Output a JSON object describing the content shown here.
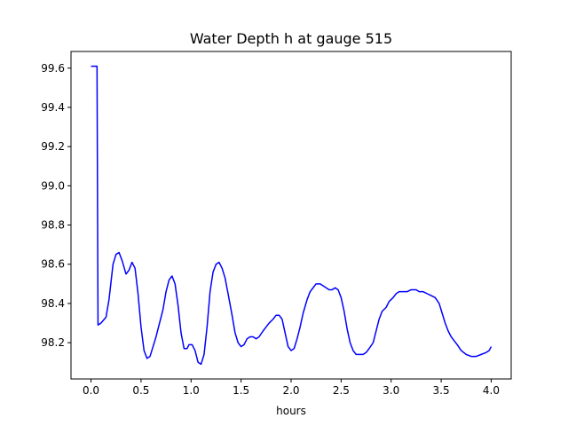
{
  "chart_data": {
    "type": "line",
    "title": "Water Depth h at gauge 515",
    "xlabel": "hours",
    "ylabel": "",
    "xlim": [
      -0.2,
      4.2
    ],
    "ylim": [
      98.015,
      99.685
    ],
    "xticks": [
      0.0,
      0.5,
      1.0,
      1.5,
      2.0,
      2.5,
      3.0,
      3.5,
      4.0
    ],
    "xtick_labels": [
      "0.0",
      "0.5",
      "1.0",
      "1.5",
      "2.0",
      "2.5",
      "3.0",
      "3.5",
      "4.0"
    ],
    "yticks": [
      98.2,
      98.4,
      98.6,
      98.8,
      99.0,
      99.2,
      99.4,
      99.6
    ],
    "ytick_labels": [
      "98.2",
      "98.4",
      "98.6",
      "98.8",
      "99.0",
      "99.2",
      "99.4",
      "99.6"
    ],
    "grid": false,
    "legend": false,
    "series": [
      {
        "color": "#0000ff",
        "x": [
          0.0,
          0.06,
          0.07,
          0.1,
          0.15,
          0.18,
          0.22,
          0.25,
          0.28,
          0.31,
          0.35,
          0.38,
          0.41,
          0.44,
          0.47,
          0.5,
          0.53,
          0.56,
          0.59,
          0.62,
          0.65,
          0.68,
          0.72,
          0.75,
          0.78,
          0.81,
          0.84,
          0.87,
          0.9,
          0.93,
          0.96,
          0.98,
          1.01,
          1.04,
          1.07,
          1.1,
          1.13,
          1.16,
          1.19,
          1.22,
          1.25,
          1.28,
          1.31,
          1.34,
          1.37,
          1.41,
          1.44,
          1.47,
          1.5,
          1.53,
          1.56,
          1.59,
          1.62,
          1.65,
          1.68,
          1.72,
          1.75,
          1.78,
          1.82,
          1.85,
          1.88,
          1.91,
          1.94,
          1.97,
          2.0,
          2.03,
          2.06,
          2.09,
          2.12,
          2.16,
          2.19,
          2.22,
          2.25,
          2.29,
          2.32,
          2.35,
          2.38,
          2.41,
          2.44,
          2.47,
          2.5,
          2.53,
          2.56,
          2.59,
          2.62,
          2.65,
          2.68,
          2.72,
          2.75,
          2.78,
          2.82,
          2.85,
          2.88,
          2.91,
          2.95,
          2.98,
          3.02,
          3.05,
          3.08,
          3.12,
          3.16,
          3.2,
          3.25,
          3.28,
          3.32,
          3.36,
          3.4,
          3.44,
          3.48,
          3.51,
          3.54,
          3.57,
          3.6,
          3.63,
          3.66,
          3.7,
          3.75,
          3.8,
          3.85,
          3.9,
          3.95,
          3.98,
          4.0
        ],
        "y": [
          99.61,
          99.61,
          98.29,
          98.3,
          98.33,
          98.42,
          98.6,
          98.65,
          98.66,
          98.62,
          98.55,
          98.57,
          98.61,
          98.58,
          98.45,
          98.28,
          98.16,
          98.12,
          98.13,
          98.18,
          98.23,
          98.29,
          98.37,
          98.46,
          98.52,
          98.54,
          98.5,
          98.39,
          98.25,
          98.17,
          98.17,
          98.19,
          98.19,
          98.16,
          98.1,
          98.09,
          98.14,
          98.28,
          98.46,
          98.56,
          98.6,
          98.61,
          98.58,
          98.53,
          98.45,
          98.34,
          98.25,
          98.2,
          98.18,
          98.19,
          98.22,
          98.23,
          98.23,
          98.22,
          98.23,
          98.26,
          98.28,
          98.3,
          98.32,
          98.34,
          98.34,
          98.32,
          98.25,
          98.18,
          98.16,
          98.17,
          98.22,
          98.28,
          98.35,
          98.42,
          98.46,
          98.48,
          98.5,
          98.5,
          98.49,
          98.48,
          98.47,
          98.47,
          98.48,
          98.47,
          98.43,
          98.36,
          98.27,
          98.2,
          98.16,
          98.14,
          98.14,
          98.14,
          98.15,
          98.17,
          98.2,
          98.26,
          98.32,
          98.36,
          98.38,
          98.41,
          98.43,
          98.45,
          98.46,
          98.46,
          98.46,
          98.47,
          98.47,
          98.46,
          98.46,
          98.45,
          98.44,
          98.43,
          98.4,
          98.35,
          98.3,
          98.26,
          98.23,
          98.21,
          98.19,
          98.16,
          98.14,
          98.13,
          98.13,
          98.14,
          98.15,
          98.16,
          98.18
        ]
      }
    ]
  }
}
